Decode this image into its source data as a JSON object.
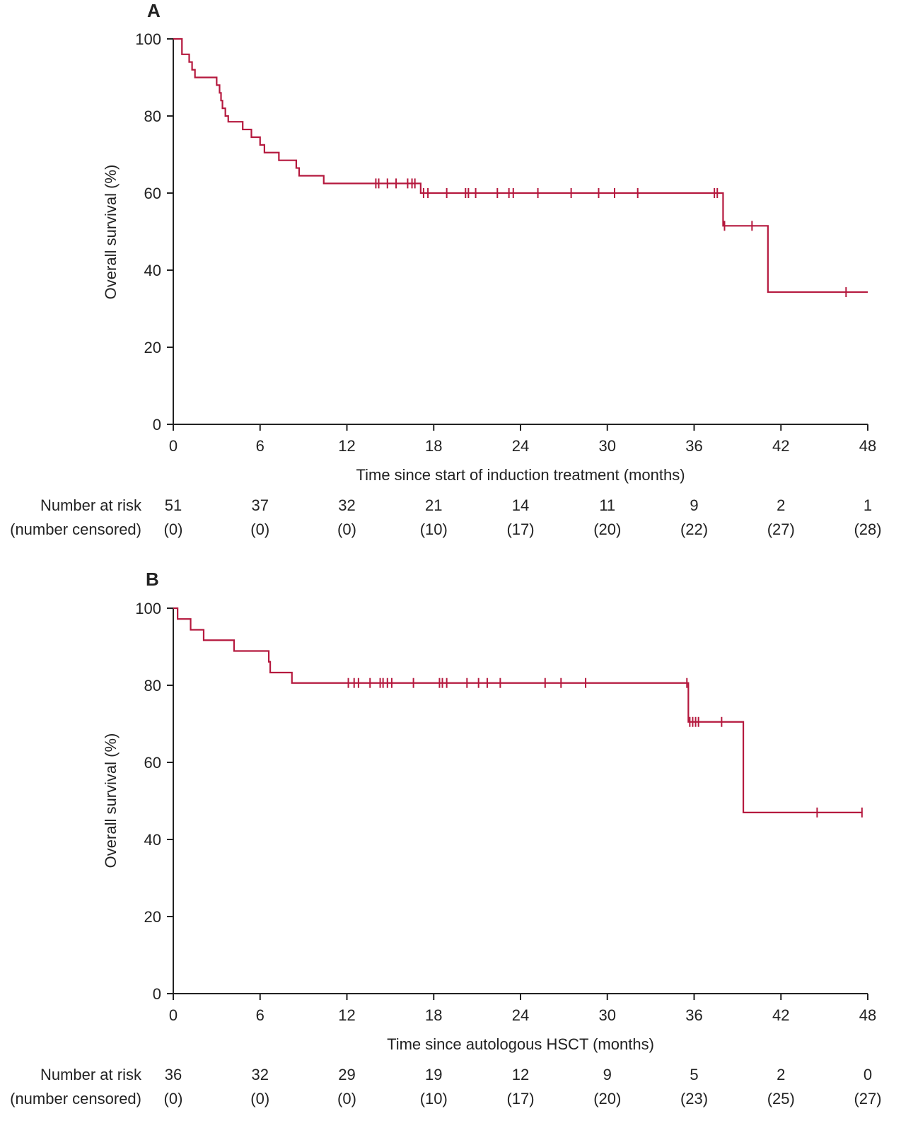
{
  "chart_data": [
    {
      "type": "line",
      "subtype": "kaplan-meier",
      "panel": "A",
      "ylabel": "Overall survival (%)",
      "xlabel": "Time since start of induction treatment (months)",
      "xlim": [
        0,
        48
      ],
      "ylim": [
        0,
        100
      ],
      "xticks": [
        "0",
        "6",
        "12",
        "18",
        "24",
        "30",
        "36",
        "42",
        "48"
      ],
      "yticks": [
        "0",
        "20",
        "40",
        "60",
        "80",
        "100"
      ],
      "grid": false,
      "line_color": "#b5193e",
      "series": [
        {
          "name": "Overall survival",
          "steps": [
            [
              0,
              100
            ],
            [
              0.6,
              96
            ],
            [
              1.1,
              94
            ],
            [
              1.3,
              92
            ],
            [
              1.5,
              90
            ],
            [
              3.0,
              88
            ],
            [
              3.2,
              86
            ],
            [
              3.3,
              84
            ],
            [
              3.4,
              82
            ],
            [
              3.6,
              80
            ],
            [
              3.8,
              78.5
            ],
            [
              4.8,
              76.5
            ],
            [
              5.4,
              74.5
            ],
            [
              6.0,
              72.5
            ],
            [
              6.3,
              70.5
            ],
            [
              7.3,
              68.5
            ],
            [
              8.5,
              66.5
            ],
            [
              8.7,
              64.5
            ],
            [
              10.4,
              62.5
            ],
            [
              17.1,
              60
            ],
            [
              38.0,
              51.5
            ],
            [
              41.1,
              34.3
            ]
          ],
          "end_x": 48,
          "censored": [
            [
              14.0,
              62.5
            ],
            [
              14.2,
              62.5
            ],
            [
              14.8,
              62.5
            ],
            [
              15.4,
              62.5
            ],
            [
              16.2,
              62.5
            ],
            [
              16.5,
              62.5
            ],
            [
              16.7,
              62.5
            ],
            [
              17.3,
              60
            ],
            [
              17.6,
              60
            ],
            [
              18.9,
              60
            ],
            [
              20.2,
              60
            ],
            [
              20.4,
              60
            ],
            [
              20.9,
              60
            ],
            [
              22.4,
              60
            ],
            [
              23.2,
              60
            ],
            [
              23.5,
              60
            ],
            [
              25.2,
              60
            ],
            [
              27.5,
              60
            ],
            [
              29.4,
              60
            ],
            [
              30.5,
              60
            ],
            [
              32.1,
              60
            ],
            [
              37.4,
              60
            ],
            [
              37.6,
              60
            ],
            [
              38.1,
              51.5
            ],
            [
              40.0,
              51.5
            ],
            [
              46.5,
              34.3
            ]
          ]
        }
      ],
      "risk_table": {
        "label": "Number at risk",
        "sublabel": "(number censored)",
        "at_risk": [
          "51",
          "37",
          "32",
          "21",
          "14",
          "11",
          "9",
          "2",
          "1"
        ],
        "censored": [
          "(0)",
          "(0)",
          "(0)",
          "(10)",
          "(17)",
          "(20)",
          "(22)",
          "(27)",
          "(28)"
        ]
      }
    },
    {
      "type": "line",
      "subtype": "kaplan-meier",
      "panel": "B",
      "ylabel": "Overall survival (%)",
      "xlabel": "Time since autologous HSCT (months)",
      "xlim": [
        0,
        48
      ],
      "ylim": [
        0,
        100
      ],
      "xticks": [
        "0",
        "6",
        "12",
        "18",
        "24",
        "30",
        "36",
        "42",
        "48"
      ],
      "yticks": [
        "0",
        "20",
        "40",
        "60",
        "80",
        "100"
      ],
      "grid": false,
      "line_color": "#b5193e",
      "series": [
        {
          "name": "Overall survival",
          "steps": [
            [
              0,
              100
            ],
            [
              0.3,
              97.2
            ],
            [
              1.2,
              94.4
            ],
            [
              2.1,
              91.7
            ],
            [
              4.2,
              88.9
            ],
            [
              6.6,
              86.1
            ],
            [
              6.7,
              83.3
            ],
            [
              8.2,
              80.6
            ],
            [
              35.6,
              70.5
            ],
            [
              39.4,
              47.0
            ]
          ],
          "end_x": 47.6,
          "censored": [
            [
              12.1,
              80.6
            ],
            [
              12.5,
              80.6
            ],
            [
              12.8,
              80.6
            ],
            [
              13.6,
              80.6
            ],
            [
              14.3,
              80.6
            ],
            [
              14.5,
              80.6
            ],
            [
              14.8,
              80.6
            ],
            [
              15.1,
              80.6
            ],
            [
              16.6,
              80.6
            ],
            [
              18.4,
              80.6
            ],
            [
              18.6,
              80.6
            ],
            [
              18.9,
              80.6
            ],
            [
              20.3,
              80.6
            ],
            [
              21.1,
              80.6
            ],
            [
              21.7,
              80.6
            ],
            [
              22.6,
              80.6
            ],
            [
              25.7,
              80.6
            ],
            [
              26.8,
              80.6
            ],
            [
              28.5,
              80.6
            ],
            [
              35.5,
              80.6
            ],
            [
              35.7,
              70.5
            ],
            [
              35.9,
              70.5
            ],
            [
              36.1,
              70.5
            ],
            [
              36.3,
              70.5
            ],
            [
              37.9,
              70.5
            ],
            [
              44.5,
              47.0
            ],
            [
              47.6,
              47.0
            ]
          ]
        }
      ],
      "risk_table": {
        "label": "Number at risk",
        "sublabel": "(number censored)",
        "at_risk": [
          "36",
          "32",
          "29",
          "19",
          "12",
          "9",
          "5",
          "2",
          "0"
        ],
        "censored": [
          "(0)",
          "(0)",
          "(0)",
          "(10)",
          "(17)",
          "(20)",
          "(23)",
          "(25)",
          "(27)"
        ]
      }
    }
  ]
}
